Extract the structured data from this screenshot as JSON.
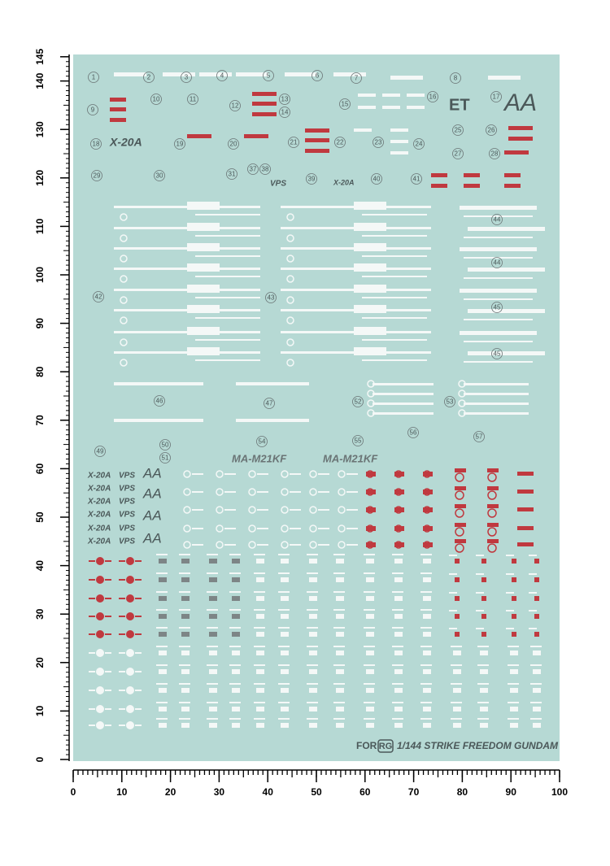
{
  "rulers": {
    "left": [
      0,
      10,
      20,
      30,
      40,
      50,
      60,
      70,
      80,
      90,
      100,
      110,
      120,
      130,
      140,
      145
    ],
    "bottom": [
      0,
      10,
      20,
      30,
      40,
      50,
      60,
      70,
      80,
      90,
      100
    ]
  },
  "decal_numbers": [
    "1",
    "2",
    "3",
    "4",
    "5",
    "6",
    "7",
    "8",
    "9",
    "10",
    "11",
    "12",
    "13",
    "14",
    "15",
    "16",
    "17",
    "18",
    "19",
    "20",
    "21",
    "22",
    "23",
    "24",
    "25",
    "26",
    "27",
    "28",
    "29",
    "30",
    "31",
    "37",
    "38",
    "39",
    "40",
    "41",
    "42",
    "43",
    "44",
    "44",
    "45",
    "45",
    "46",
    "47",
    "52",
    "53",
    "49",
    "50",
    "51",
    "54",
    "55",
    "56",
    "57"
  ],
  "decal_texts": {
    "x20a": "X-20A",
    "vps": "VPS",
    "aa": "AA",
    "et": "ET",
    "ma": "MA-M21KF"
  },
  "footer": {
    "for": "FOR",
    "grade": "RG",
    "title": "1/144 STRIKE FREEDOM GUNDAM"
  }
}
